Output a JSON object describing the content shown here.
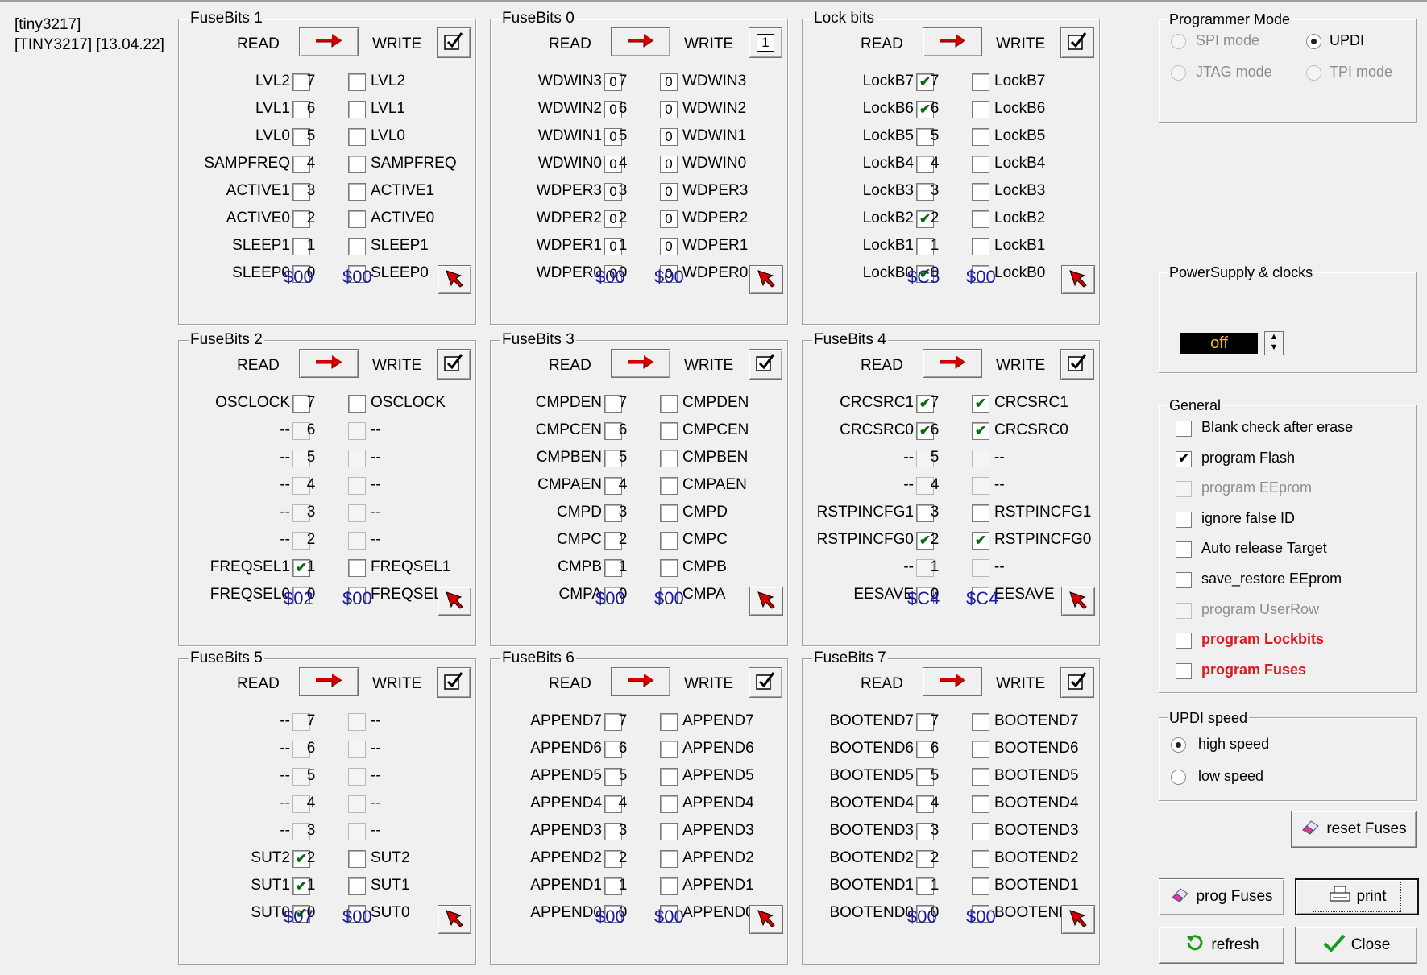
{
  "device": {
    "line1": "[tiny3217]",
    "line2": "[TINY3217] [13.04.22]"
  },
  "labels": {
    "read": "READ",
    "write": "WRITE"
  },
  "panels": [
    {
      "title": "FuseBits 1",
      "write_mark": "check",
      "mode": "check",
      "read_hex": "$00",
      "write_hex": "$00",
      "rows": [
        {
          "left": "LVL2",
          "bit": "7",
          "right": "LVL2",
          "read": false,
          "write": false
        },
        {
          "left": "LVL1",
          "bit": "6",
          "right": "LVL1",
          "read": false,
          "write": false
        },
        {
          "left": "LVL0",
          "bit": "5",
          "right": "LVL0",
          "read": false,
          "write": false
        },
        {
          "left": "SAMPFREQ",
          "bit": "4",
          "right": "SAMPFREQ",
          "read": false,
          "write": false
        },
        {
          "left": "ACTIVE1",
          "bit": "3",
          "right": "ACTIVE1",
          "read": false,
          "write": false
        },
        {
          "left": "ACTIVE0",
          "bit": "2",
          "right": "ACTIVE0",
          "read": false,
          "write": false
        },
        {
          "left": "SLEEP1",
          "bit": "1",
          "right": "SLEEP1",
          "read": false,
          "write": false
        },
        {
          "left": "SLEEP0",
          "bit": "0",
          "right": "SLEEP0",
          "read": false,
          "write": false
        }
      ]
    },
    {
      "title": "FuseBits 0",
      "write_mark": "1",
      "mode": "text",
      "read_hex": "$00",
      "write_hex": "$00",
      "rows": [
        {
          "left": "WDWIN3",
          "bit": "7",
          "right": "WDWIN3",
          "read": "0",
          "write": "0"
        },
        {
          "left": "WDWIN2",
          "bit": "6",
          "right": "WDWIN2",
          "read": "0",
          "write": "0"
        },
        {
          "left": "WDWIN1",
          "bit": "5",
          "right": "WDWIN1",
          "read": "0",
          "write": "0"
        },
        {
          "left": "WDWIN0",
          "bit": "4",
          "right": "WDWIN0",
          "read": "0",
          "write": "0"
        },
        {
          "left": "WDPER3",
          "bit": "3",
          "right": "WDPER3",
          "read": "0",
          "write": "0"
        },
        {
          "left": "WDPER2",
          "bit": "2",
          "right": "WDPER2",
          "read": "0",
          "write": "0"
        },
        {
          "left": "WDPER1",
          "bit": "1",
          "right": "WDPER1",
          "read": "0",
          "write": "0"
        },
        {
          "left": "WDPER0",
          "bit": "0",
          "right": "WDPER0",
          "read": "0",
          "write": "0"
        }
      ]
    },
    {
      "title": "Lock bits",
      "write_mark": "check",
      "mode": "check",
      "read_hex": "$C5",
      "write_hex": "$00",
      "rows": [
        {
          "left": "LockB7",
          "bit": "7",
          "right": "LockB7",
          "read": true,
          "write": false
        },
        {
          "left": "LockB6",
          "bit": "6",
          "right": "LockB6",
          "read": true,
          "write": false
        },
        {
          "left": "LockB5",
          "bit": "5",
          "right": "LockB5",
          "read": false,
          "write": false
        },
        {
          "left": "LockB4",
          "bit": "4",
          "right": "LockB4",
          "read": false,
          "write": false
        },
        {
          "left": "LockB3",
          "bit": "3",
          "right": "LockB3",
          "read": false,
          "write": false
        },
        {
          "left": "LockB2",
          "bit": "2",
          "right": "LockB2",
          "read": true,
          "write": false
        },
        {
          "left": "LockB1",
          "bit": "1",
          "right": "LockB1",
          "read": false,
          "write": false
        },
        {
          "left": "LockB0",
          "bit": "0",
          "right": "LockB0",
          "read": true,
          "write": false
        }
      ]
    },
    {
      "title": "FuseBits 2",
      "write_mark": "check",
      "mode": "check",
      "read_hex": "$02",
      "write_hex": "$00",
      "rows": [
        {
          "left": "OSCLOCK",
          "bit": "7",
          "right": "OSCLOCK",
          "read": false,
          "write": false
        },
        {
          "left": "--",
          "bit": "6",
          "right": "--",
          "read": false,
          "write": false,
          "disabled": true
        },
        {
          "left": "--",
          "bit": "5",
          "right": "--",
          "read": false,
          "write": false,
          "disabled": true
        },
        {
          "left": "--",
          "bit": "4",
          "right": "--",
          "read": false,
          "write": false,
          "disabled": true
        },
        {
          "left": "--",
          "bit": "3",
          "right": "--",
          "read": false,
          "write": false,
          "disabled": true
        },
        {
          "left": "--",
          "bit": "2",
          "right": "--",
          "read": false,
          "write": false,
          "disabled": true
        },
        {
          "left": "FREQSEL1",
          "bit": "1",
          "right": "FREQSEL1",
          "read": true,
          "write": false
        },
        {
          "left": "FREQSEL0",
          "bit": "0",
          "right": "FREQSEL0",
          "read": false,
          "write": false
        }
      ]
    },
    {
      "title": "FuseBits 3",
      "write_mark": "check",
      "mode": "check",
      "read_hex": "$00",
      "write_hex": "$00",
      "rows": [
        {
          "left": "CMPDEN",
          "bit": "7",
          "right": "CMPDEN",
          "read": false,
          "write": false
        },
        {
          "left": "CMPCEN",
          "bit": "6",
          "right": "CMPCEN",
          "read": false,
          "write": false
        },
        {
          "left": "CMPBEN",
          "bit": "5",
          "right": "CMPBEN",
          "read": false,
          "write": false
        },
        {
          "left": "CMPAEN",
          "bit": "4",
          "right": "CMPAEN",
          "read": false,
          "write": false
        },
        {
          "left": "CMPD",
          "bit": "3",
          "right": "CMPD",
          "read": false,
          "write": false
        },
        {
          "left": "CMPC",
          "bit": "2",
          "right": "CMPC",
          "read": false,
          "write": false
        },
        {
          "left": "CMPB",
          "bit": "1",
          "right": "CMPB",
          "read": false,
          "write": false
        },
        {
          "left": "CMPA",
          "bit": "0",
          "right": "CMPA",
          "read": false,
          "write": false
        }
      ]
    },
    {
      "title": "FuseBits 4",
      "write_mark": "check",
      "mode": "check",
      "read_hex": "$C4",
      "write_hex": "$C4",
      "rows": [
        {
          "left": "CRCSRC1",
          "bit": "7",
          "right": "CRCSRC1",
          "read": true,
          "write": true
        },
        {
          "left": "CRCSRC0",
          "bit": "6",
          "right": "CRCSRC0",
          "read": true,
          "write": true
        },
        {
          "left": "--",
          "bit": "5",
          "right": "--",
          "read": false,
          "write": false,
          "disabled": true
        },
        {
          "left": "--",
          "bit": "4",
          "right": "--",
          "read": false,
          "write": false,
          "disabled": true
        },
        {
          "left": "RSTPINCFG1",
          "bit": "3",
          "right": "RSTPINCFG1",
          "read": false,
          "write": false
        },
        {
          "left": "RSTPINCFG0",
          "bit": "2",
          "right": "RSTPINCFG0",
          "read": true,
          "write": true
        },
        {
          "left": "--",
          "bit": "1",
          "right": "--",
          "read": false,
          "write": false,
          "disabled": true
        },
        {
          "left": "EESAVE",
          "bit": "0",
          "right": "EESAVE",
          "read": false,
          "write": false
        }
      ]
    },
    {
      "title": "FuseBits 5",
      "write_mark": "check",
      "mode": "check",
      "read_hex": "$07",
      "write_hex": "$00",
      "rows": [
        {
          "left": "--",
          "bit": "7",
          "right": "--",
          "read": false,
          "write": false,
          "disabled": true
        },
        {
          "left": "--",
          "bit": "6",
          "right": "--",
          "read": false,
          "write": false,
          "disabled": true
        },
        {
          "left": "--",
          "bit": "5",
          "right": "--",
          "read": false,
          "write": false,
          "disabled": true
        },
        {
          "left": "--",
          "bit": "4",
          "right": "--",
          "read": false,
          "write": false,
          "disabled": true
        },
        {
          "left": "--",
          "bit": "3",
          "right": "--",
          "read": false,
          "write": false,
          "disabled": true
        },
        {
          "left": "SUT2",
          "bit": "2",
          "right": "SUT2",
          "read": true,
          "write": false
        },
        {
          "left": "SUT1",
          "bit": "1",
          "right": "SUT1",
          "read": true,
          "write": false
        },
        {
          "left": "SUT0",
          "bit": "0",
          "right": "SUT0",
          "read": true,
          "write": false
        }
      ]
    },
    {
      "title": "FuseBits 6",
      "write_mark": "check",
      "mode": "check",
      "read_hex": "$00",
      "write_hex": "$00",
      "rows": [
        {
          "left": "APPEND7",
          "bit": "7",
          "right": "APPEND7",
          "read": false,
          "write": false
        },
        {
          "left": "APPEND6",
          "bit": "6",
          "right": "APPEND6",
          "read": false,
          "write": false
        },
        {
          "left": "APPEND5",
          "bit": "5",
          "right": "APPEND5",
          "read": false,
          "write": false
        },
        {
          "left": "APPEND4",
          "bit": "4",
          "right": "APPEND4",
          "read": false,
          "write": false
        },
        {
          "left": "APPEND3",
          "bit": "3",
          "right": "APPEND3",
          "read": false,
          "write": false
        },
        {
          "left": "APPEND2",
          "bit": "2",
          "right": "APPEND2",
          "read": false,
          "write": false
        },
        {
          "left": "APPEND1",
          "bit": "1",
          "right": "APPEND1",
          "read": false,
          "write": false
        },
        {
          "left": "APPEND0",
          "bit": "0",
          "right": "APPEND0",
          "read": false,
          "write": false
        }
      ]
    },
    {
      "title": "FuseBits 7",
      "write_mark": "check",
      "mode": "check",
      "read_hex": "$00",
      "write_hex": "$00",
      "rows": [
        {
          "left": "BOOTEND7",
          "bit": "7",
          "right": "BOOTEND7",
          "read": false,
          "write": false
        },
        {
          "left": "BOOTEND6",
          "bit": "6",
          "right": "BOOTEND6",
          "read": false,
          "write": false
        },
        {
          "left": "BOOTEND5",
          "bit": "5",
          "right": "BOOTEND5",
          "read": false,
          "write": false
        },
        {
          "left": "BOOTEND4",
          "bit": "4",
          "right": "BOOTEND4",
          "read": false,
          "write": false
        },
        {
          "left": "BOOTEND3",
          "bit": "3",
          "right": "BOOTEND3",
          "read": false,
          "write": false
        },
        {
          "left": "BOOTEND2",
          "bit": "2",
          "right": "BOOTEND2",
          "read": false,
          "write": false
        },
        {
          "left": "BOOTEND1",
          "bit": "1",
          "right": "BOOTEND1",
          "read": false,
          "write": false
        },
        {
          "left": "BOOTEND0",
          "bit": "0",
          "right": "BOOTEND0",
          "read": false,
          "write": false
        }
      ]
    }
  ],
  "programmer_mode": {
    "title": "Programmer Mode",
    "spi": "SPI mode",
    "updi": "UPDI",
    "jtag": "JTAG mode",
    "tpi": "TPI mode",
    "selected": "UPDI"
  },
  "power": {
    "title": "PowerSupply & clocks",
    "value": "off"
  },
  "general": {
    "title": "General",
    "items": [
      {
        "label": "Blank check after erase",
        "checked": false,
        "disabled": false,
        "red": false
      },
      {
        "label": "program Flash",
        "checked": true,
        "disabled": false,
        "red": false
      },
      {
        "label": "program EEprom",
        "checked": false,
        "disabled": true,
        "red": false
      },
      {
        "label": "ignore false ID",
        "checked": false,
        "disabled": false,
        "red": false
      },
      {
        "label": "Auto release Target",
        "checked": false,
        "disabled": false,
        "red": false
      },
      {
        "label": "save_restore EEprom",
        "checked": false,
        "disabled": false,
        "red": false
      },
      {
        "label": "program UserRow",
        "checked": false,
        "disabled": true,
        "red": false
      },
      {
        "label": "program Lockbits",
        "checked": false,
        "disabled": false,
        "red": true
      },
      {
        "label": "program Fuses",
        "checked": false,
        "disabled": false,
        "red": true
      }
    ]
  },
  "updi_speed": {
    "title": "UPDI speed",
    "high": "high speed",
    "low": "low speed",
    "selected": "high"
  },
  "buttons": {
    "reset_fuses": "reset Fuses",
    "prog_fuses": "prog Fuses",
    "print": "print",
    "refresh": "refresh",
    "close": "Close"
  },
  "colors": {
    "hex": "#1a1aa6",
    "check": "#0b6b0b",
    "arrow": "#d40000",
    "red_label": "#e0161f"
  }
}
